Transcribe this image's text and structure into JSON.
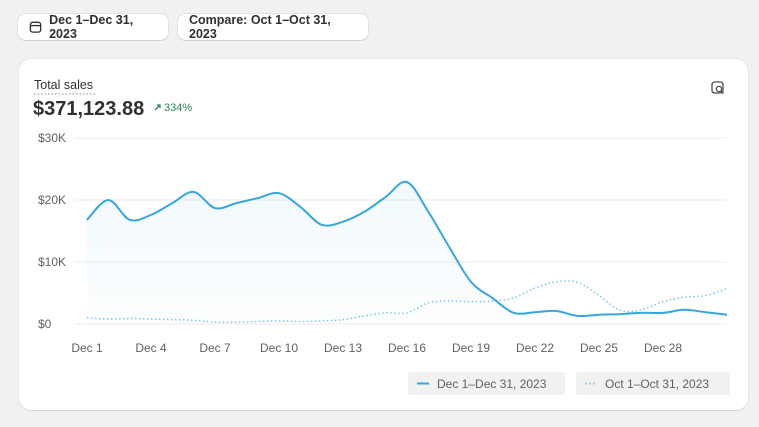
{
  "toolbar": {
    "date_range": "Dec 1–Dec 31, 2023",
    "compare": "Compare: Oct 1–Oct 31, 2023"
  },
  "chart_data": {
    "type": "line",
    "title": "Total sales",
    "subtitle": "$371,123.88",
    "annotations": [
      "334%"
    ],
    "categories": [
      "Dec 1",
      null,
      null,
      "Dec 4",
      null,
      null,
      "Dec 7",
      null,
      null,
      "Dec 10",
      null,
      null,
      "Dec 13",
      null,
      null,
      "Dec 16",
      null,
      null,
      "Dec 19",
      null,
      null,
      "Dec 22",
      null,
      null,
      "Dec 25",
      null,
      null,
      "Dec 28",
      null,
      null,
      null
    ],
    "series": [
      {
        "name": "Dec 1–Dec 31, 2023",
        "color": "#35a7dd",
        "style": "solid",
        "values": [
          16800,
          20000,
          16800,
          17600,
          19500,
          21300,
          18700,
          19500,
          20300,
          21100,
          18900,
          16000,
          16500,
          18100,
          20500,
          22900,
          18100,
          12300,
          6800,
          4200,
          1800,
          1900,
          2100,
          1300,
          1500,
          1600,
          1800,
          1800,
          2300,
          1900,
          1500
        ]
      },
      {
        "name": "Oct 1–Oct 31, 2023",
        "color": "#7fc4e8",
        "style": "dotted",
        "values": [
          1000,
          800,
          900,
          800,
          700,
          600,
          300,
          300,
          400,
          500,
          400,
          500,
          700,
          1300,
          1800,
          1800,
          3400,
          3700,
          3600,
          3700,
          4200,
          5800,
          6800,
          6700,
          4600,
          2200,
          2300,
          3600,
          4300,
          4600,
          5700
        ]
      }
    ],
    "ylim": [
      0,
      30000
    ],
    "yticks": [
      {
        "value": 0,
        "label": "$0"
      },
      {
        "value": 10000,
        "label": "$10K"
      },
      {
        "value": 20000,
        "label": "$20K"
      },
      {
        "value": 30000,
        "label": "$30K"
      }
    ],
    "grid": true
  }
}
